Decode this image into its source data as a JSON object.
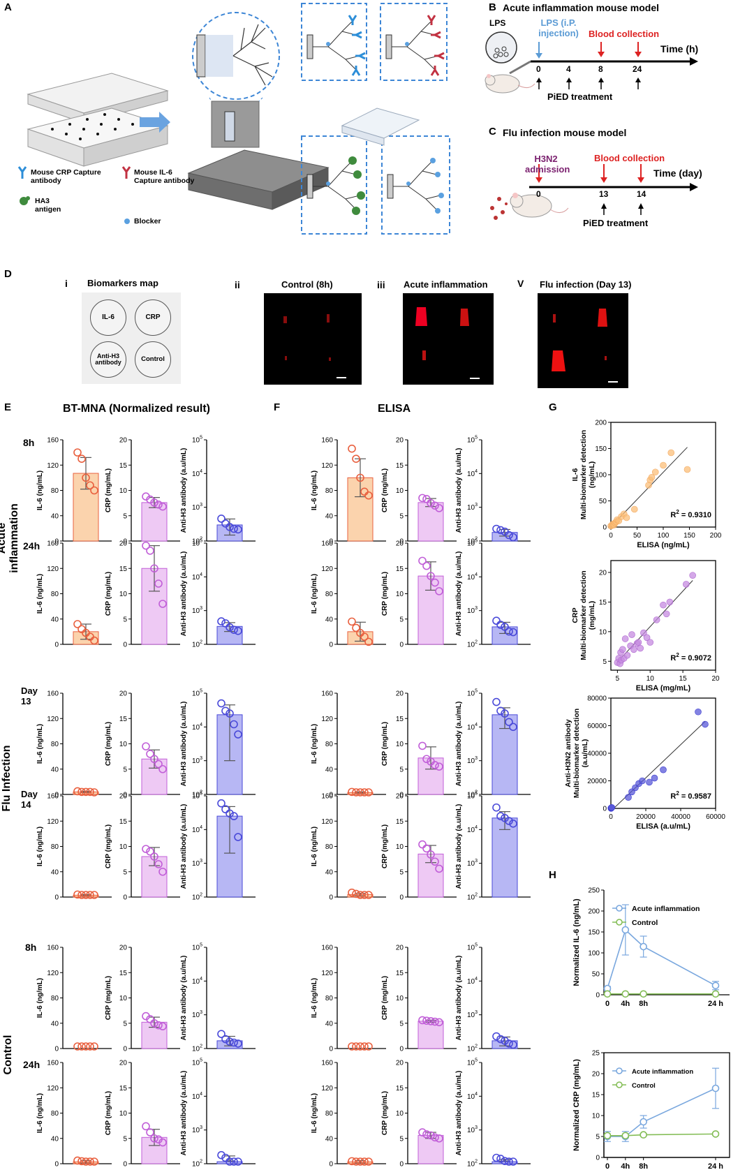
{
  "panelA": {
    "label": "A",
    "legend": {
      "crp_capture": "Mouse CRP Capture antibody",
      "il6_capture": "Mouse IL-6 Capture  antibody",
      "ha3": "HA3 antigen",
      "blocker": "Blocker"
    }
  },
  "panelB": {
    "label": "B",
    "title": "Acute inflammation mouse model",
    "lps_circle": "LPS",
    "lps_injection": "LPS (i.P. injection)",
    "blood": "Blood collection",
    "time_label": "Time (h)",
    "ticks": [
      "0",
      "4",
      "8",
      "24"
    ],
    "treatment": "PiED treatment"
  },
  "panelC": {
    "label": "C",
    "title": "Flu infection mouse model",
    "h3n2": "H3N2 admission",
    "blood": "Blood collection",
    "time_label": "Time (day)",
    "ticks": [
      "0",
      "13",
      "14"
    ],
    "treatment": "PiED treatment"
  },
  "panelD": {
    "label": "D",
    "sub_i": "i",
    "sub_ii": "ii",
    "sub_iii": "iii",
    "sub_v": "V",
    "map_title": "Biomarkers map",
    "map_items": [
      "IL-6",
      "CRP",
      "Anti-H3 antibody",
      "Control"
    ],
    "t_control": "Control (8h)",
    "t_acute": "Acute inflammation",
    "t_flu": "Flu infection (Day 13)"
  },
  "panelE": {
    "label": "E",
    "title": "BT-MNA (Normalized result)"
  },
  "panelF": {
    "label": "F",
    "title": "ELISA"
  },
  "panelG": {
    "label": "G"
  },
  "panelH": {
    "label": "H"
  },
  "groups": {
    "acute": "Acute inflammation",
    "flu": "Flu Infection",
    "control": "Control"
  },
  "rows": [
    {
      "time": "8h"
    },
    {
      "time": "24h"
    },
    {
      "time": "Day 13"
    },
    {
      "time": "Day 14"
    },
    {
      "time": "8h"
    },
    {
      "time": "24h"
    }
  ],
  "colors": {
    "il6_fill": "#fbd3ad",
    "il6_edge": "#e9603f",
    "crp_fill": "#eec9f4",
    "crp_edge": "#c15fd8",
    "ab_fill": "#b7b7f4",
    "ab_edge": "#4a4ad9",
    "acute_line": "#79a7de",
    "control_line": "#84bd56"
  },
  "chart_data": [
    {
      "type": "bar",
      "name": "E - BT-MNA (Normalized result)",
      "ylabels": [
        "IL-6 (ng/mL)",
        "CRP (mg/mL)",
        "Anti-H3 antibody (a.u/mL)"
      ],
      "ylims": [
        [
          0,
          160
        ],
        [
          0,
          20
        ],
        [
          100,
          100000
        ]
      ],
      "yticks": [
        [
          "0",
          "40",
          "80",
          "120",
          "160"
        ],
        [
          "0",
          "5",
          "10",
          "15",
          "20"
        ],
        [
          "10^2",
          "10^3",
          "10^4",
          "10^5"
        ]
      ],
      "rows": [
        "Acute inflammation 8h",
        "Acute inflammation 24h",
        "Flu Infection Day 13",
        "Flu Infection Day 14",
        "Control 8h",
        "Control 24h"
      ],
      "means": [
        [
          107,
          7.6,
          300
        ],
        [
          20,
          15,
          340
        ],
        [
          4,
          7,
          23000
        ],
        [
          3,
          8,
          25000
        ],
        [
          0,
          5.2,
          170
        ],
        [
          3,
          5.2,
          115
        ]
      ],
      "sd": [
        [
          25,
          1.0,
          150
        ],
        [
          12,
          4.5,
          100
        ],
        [
          1,
          1.8,
          22000
        ],
        [
          1,
          1.8,
          23000
        ],
        [
          0,
          1.0,
          60
        ],
        [
          2,
          1.6,
          55
        ]
      ],
      "points": [
        [
          [
            140,
            130,
            100,
            88,
            80
          ],
          [
            8.8,
            8.2,
            7.6,
            7.2,
            6.8
          ],
          [
            460,
            330,
            260,
            230,
            220
          ]
        ],
        [
          [
            32,
            24,
            18,
            12,
            6
          ],
          [
            19.5,
            18.5,
            15,
            12,
            8
          ],
          [
            480,
            420,
            320,
            270,
            250
          ]
        ],
        [
          [
            5,
            4,
            4,
            4,
            3
          ],
          [
            9.5,
            8,
            7,
            6,
            5
          ],
          [
            50000,
            30000,
            25000,
            12000,
            6000
          ]
        ],
        [
          [
            4,
            3,
            3,
            3,
            2
          ],
          [
            9.5,
            9,
            8,
            6.5,
            5
          ],
          [
            60000,
            40000,
            30000,
            25000,
            6000
          ]
        ],
        [
          [
            0,
            0,
            0,
            0,
            0
          ],
          [
            6.4,
            5.8,
            5.0,
            4.6,
            4.4
          ],
          [
            270,
            190,
            160,
            150,
            140
          ]
        ],
        [
          [
            5,
            4,
            3,
            2,
            1
          ],
          [
            7.4,
            6.2,
            5.0,
            4.8,
            4.2
          ],
          [
            180,
            150,
            100,
            80,
            70
          ]
        ]
      ]
    },
    {
      "type": "bar",
      "name": "F - ELISA",
      "ylabels": [
        "IL-6 (ng/mL)",
        "CRP (mg/mL)",
        "Anti-H3 antibody (a.u/mL)"
      ],
      "ylims": [
        [
          0,
          160
        ],
        [
          0,
          20
        ],
        [
          100,
          100000
        ]
      ],
      "yticks": [
        [
          "0",
          "40",
          "80",
          "120",
          "160"
        ],
        [
          "0",
          "5",
          "10",
          "15",
          "20"
        ],
        [
          "10^2",
          "10^3",
          "10^4",
          "10^5"
        ]
      ],
      "rows": [
        "Acute inflammation 8h",
        "Acute inflammation 24h",
        "Flu Infection Day 13",
        "Flu Infection Day 14",
        "Control 8h",
        "Control 24h"
      ],
      "means": [
        [
          100,
          7.6,
          180
        ],
        [
          20,
          13.5,
          330
        ],
        [
          3,
          7.2,
          23000
        ],
        [
          4,
          8.5,
          22000
        ],
        [
          0,
          5.4,
          170
        ],
        [
          3,
          5.6,
          115
        ]
      ],
      "sd": [
        [
          30,
          0.8,
          40
        ],
        [
          15,
          2.8,
          120
        ],
        [
          1,
          2.2,
          14000
        ],
        [
          2,
          1.7,
          12000
        ],
        [
          0,
          0.2,
          50
        ],
        [
          2,
          0.6,
          20
        ]
      ],
      "points": [
        [
          [
            146,
            130,
            100,
            78,
            72
          ],
          [
            8.5,
            8.3,
            7.5,
            7.0,
            6.5
          ],
          [
            230,
            210,
            190,
            150,
            130
          ]
        ],
        [
          [
            36,
            26,
            18,
            12,
            4
          ],
          [
            16.5,
            15.5,
            13.5,
            12.2,
            10.5
          ],
          [
            500,
            380,
            330,
            240,
            230
          ]
        ],
        [
          [
            4,
            3,
            3,
            3,
            2
          ],
          [
            9.6,
            7,
            6.5,
            5.8,
            5.5
          ],
          [
            55000,
            30000,
            25000,
            14000,
            10000
          ]
        ],
        [
          [
            7,
            5,
            3,
            3,
            2
          ],
          [
            10.4,
            9.6,
            8.4,
            7.0,
            5.6
          ],
          [
            45000,
            25000,
            22000,
            18000,
            15000
          ]
        ],
        [
          [
            0,
            0,
            0,
            0,
            0
          ],
          [
            5.6,
            5.5,
            5.4,
            5.3,
            5.2
          ],
          [
            230,
            190,
            170,
            140,
            130
          ]
        ],
        [
          [
            4,
            3,
            3,
            2,
            2
          ],
          [
            6.2,
            5.8,
            5.6,
            5.2,
            5.0
          ],
          [
            150,
            140,
            120,
            100,
            90
          ]
        ]
      ]
    },
    {
      "type": "scatter",
      "name": "G - IL-6",
      "ylabel": "IL-6 Multi-biomarker detection (ng/mL)",
      "xlabel": "ELISA (ng/mL)",
      "xlim": [
        0,
        200
      ],
      "ylim": [
        0,
        200
      ],
      "xticks": [
        "0",
        "50",
        "100",
        "150",
        "200"
      ],
      "yticks": [
        "0",
        "50",
        "100",
        "150",
        "200"
      ],
      "r2": "R² = 0.9310",
      "x": [
        0,
        2,
        3,
        5,
        6,
        8,
        10,
        12,
        15,
        20,
        25,
        30,
        45,
        72,
        75,
        78,
        85,
        100,
        115,
        146
      ],
      "y": [
        2,
        3,
        5,
        6,
        4,
        8,
        10,
        14,
        12,
        20,
        25,
        18,
        34,
        80,
        90,
        95,
        105,
        118,
        142,
        110
      ]
    },
    {
      "type": "scatter",
      "name": "G - CRP",
      "ylabel": "CRP Multi-biomarker detection (mg/mL)",
      "xlabel": "ELISA (mg/mL)",
      "xlim": [
        4,
        20
      ],
      "ylim": [
        3.5,
        22
      ],
      "xticks": [
        "5",
        "10",
        "15",
        "20"
      ],
      "yticks": [
        "5",
        "10",
        "15",
        "20"
      ],
      "r2": "R² = 0.9072",
      "x": [
        5,
        5.2,
        5.4,
        5.5,
        5.6,
        5.8,
        6,
        6.2,
        6.5,
        7,
        7.2,
        7.5,
        8,
        8.2,
        8.5,
        9,
        9.5,
        10,
        11,
        12,
        12.5,
        13,
        15.5,
        16.5
      ],
      "y": [
        4.8,
        5.5,
        4.6,
        6.5,
        5.2,
        7.0,
        5.5,
        8.8,
        6.0,
        7.6,
        9.5,
        7.0,
        8.0,
        8.2,
        7.2,
        9.8,
        9.0,
        8.2,
        12.0,
        14.5,
        13.0,
        15.0,
        18.0,
        19.5
      ]
    },
    {
      "type": "scatter",
      "name": "G - Anti-H3N2 antibody",
      "ylabel": "Anti-H3N2 antibody Multi-biomarker detection (a.u/mL)",
      "xlabel": "ELISA (a.u/mL)",
      "xlim": [
        0,
        60000
      ],
      "ylim": [
        0,
        80000
      ],
      "xticks": [
        "0",
        "20000",
        "40000",
        "60000"
      ],
      "yticks": [
        "0",
        "20000",
        "40000",
        "60000",
        "80000"
      ],
      "r2": "R² = 0.9587",
      "x": [
        100,
        150,
        200,
        300,
        500,
        10000,
        12000,
        14000,
        16000,
        18000,
        22000,
        25000,
        30000,
        50000,
        54000
      ],
      "y": [
        100,
        200,
        300,
        400,
        600,
        8000,
        12000,
        15000,
        18000,
        20000,
        19000,
        22000,
        28000,
        70000,
        61000
      ]
    },
    {
      "type": "line",
      "name": "H - Normalized IL-6",
      "ylabel": "Normalized IL-6 (ng/mL)",
      "x": [
        "0",
        "4h",
        "8h",
        "24 h"
      ],
      "xpos": [
        0,
        4,
        8,
        24
      ],
      "ylim": [
        0,
        250
      ],
      "yticks": [
        "0",
        "50",
        "100",
        "150",
        "200",
        "250"
      ],
      "series": [
        {
          "name": "Acute inflammation",
          "values": [
            15,
            155,
            115,
            22
          ],
          "sd": [
            5,
            60,
            25,
            10
          ]
        },
        {
          "name": "Control",
          "values": [
            2,
            2,
            2,
            2
          ],
          "sd": [
            1,
            1,
            1,
            1
          ]
        }
      ]
    },
    {
      "type": "line",
      "name": "H - Normalized CRP",
      "ylabel": "Normalized CRP (mg/mL)",
      "x": [
        "0",
        "4h",
        "8h",
        "24 h"
      ],
      "xpos": [
        0,
        4,
        8,
        24
      ],
      "ylim": [
        0,
        25
      ],
      "yticks": [
        "0",
        "5",
        "10",
        "15",
        "20",
        "25"
      ],
      "series": [
        {
          "name": "Acute inflammation",
          "values": [
            5,
            5,
            8.5,
            16.5
          ],
          "sd": [
            1.2,
            1.2,
            1.5,
            4.8
          ]
        },
        {
          "name": "Control",
          "values": [
            5.2,
            5.2,
            5.4,
            5.6
          ],
          "sd": [
            0.4,
            0.4,
            0.3,
            0.3
          ]
        }
      ]
    }
  ]
}
